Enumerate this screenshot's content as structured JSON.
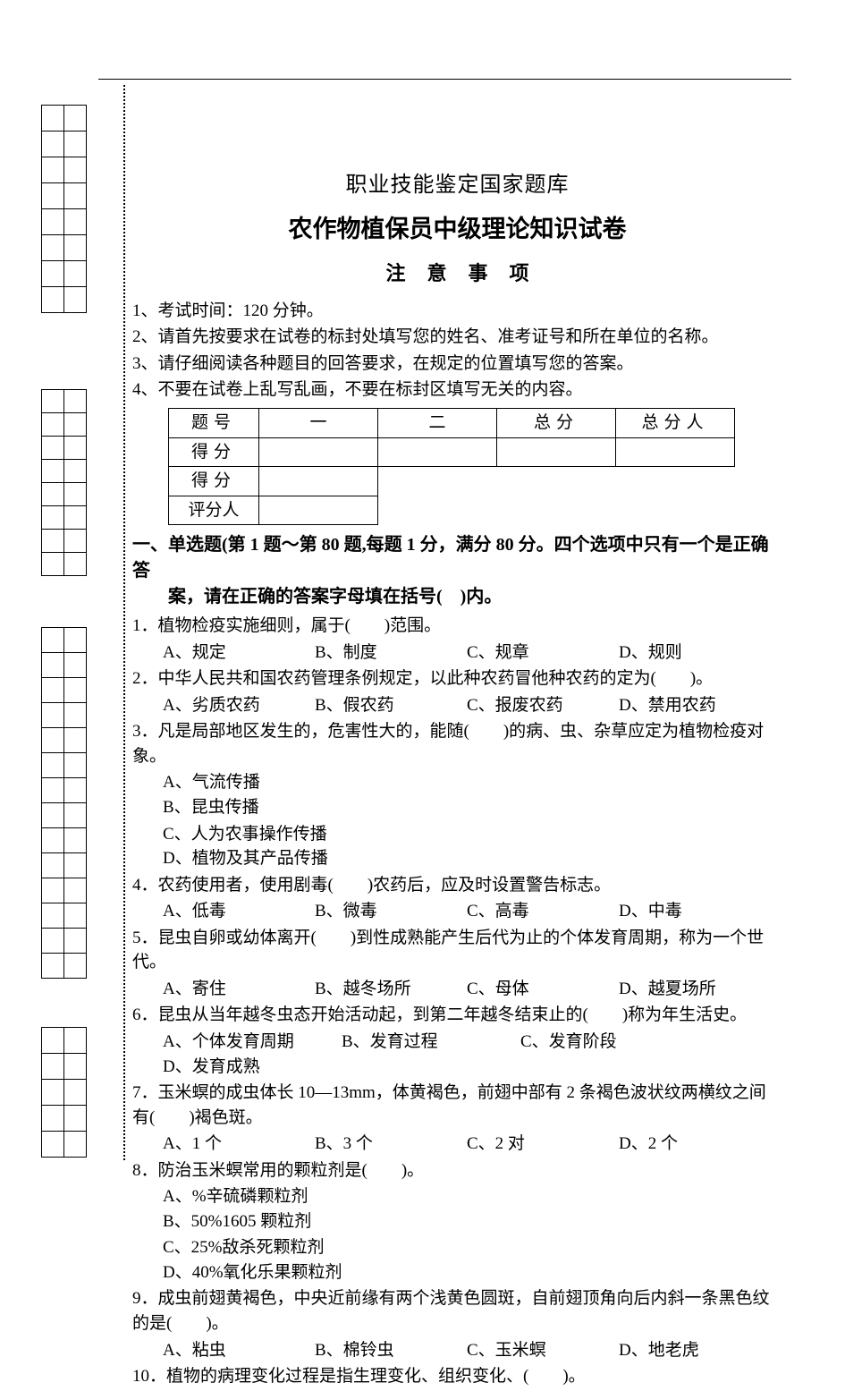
{
  "header": {
    "title1": "职业技能鉴定国家题库",
    "title2": "农作物植保员中级理论知识试卷",
    "title3": "注意事项"
  },
  "notes": [
    "1、考试时间：120 分钟。",
    "2、请首先按要求在试卷的标封处填写您的姓名、准考证号和所在单位的名称。",
    "3、请仔细阅读各种题目的回答要求，在规定的位置填写您的答案。",
    "4、不要在试卷上乱写乱画，不要在标封区填写无关的内容。"
  ],
  "score_table": {
    "row1_label": "题号",
    "row1_cells": [
      "一",
      "二",
      "总分",
      "总分人"
    ],
    "row2_label": "得分",
    "row3_label": "得分",
    "row4_label": "评分人"
  },
  "section1": {
    "line1": "一、单选题(第 1 题～第 80 题,每题 1 分，满分 80 分。四个选项中只有一个是正确答",
    "line2": "案，请在正确的答案字母填在括号(　)内。"
  },
  "questions": [
    {
      "stem": "1．植物检疫实施细则，属于(　　)范围。",
      "opts": [
        [
          "A、规定",
          "B、制度",
          "C、规章",
          "D、规则"
        ]
      ],
      "cls": "w120"
    },
    {
      "stem": "2．中华人民共和国农药管理条例规定，以此种农药冒他种农药的定为(　　)。",
      "opts": [
        [
          "A、劣质农药",
          "B、假农药",
          "C、报废农药",
          "D、禁用农药"
        ]
      ],
      "cls": "w120"
    },
    {
      "stem": "3．凡是局部地区发生的，危害性大的，能随(　　)的病、虫、杂草应定为植物检疫对象。",
      "opts": [
        [
          "A、气流传播",
          "B、昆虫传播"
        ],
        [
          "C、人为农事操作传播",
          "D、植物及其产品传播"
        ]
      ],
      "cls": "w300"
    },
    {
      "stem": "4．农药使用者，使用剧毒(　　)农药后，应及时设置警告标志。",
      "opts": [
        [
          "A、低毒",
          "B、微毒",
          "C、高毒",
          "D、中毒"
        ]
      ],
      "cls": "w120"
    },
    {
      "stem": "5．昆虫自卵或幼体离开(　　)到性成熟能产生后代为止的个体发育周期，称为一个世代。",
      "opts": [
        [
          "A、寄住",
          "B、越冬场所",
          "C、母体",
          "D、越夏场所"
        ]
      ],
      "cls": "w120"
    },
    {
      "stem": "6．昆虫从当年越冬虫态开始活动起，到第二年越冬结束止的(　　)称为年生活史。",
      "opts": [
        [
          "A、个体发育周期",
          "B、发育过程",
          "C、发育阶段",
          "D、发育成熟"
        ]
      ],
      "cls": "w160"
    },
    {
      "stem": "7．玉米螟的成虫体长 10—13mm，体黄褐色，前翅中部有 2 条褐色波状纹两横纹之间有(　　)褐色斑。",
      "opts": [
        [
          "A、1 个",
          "B、3 个",
          "C、2 对",
          "D、2 个"
        ]
      ],
      "cls": "w120"
    },
    {
      "stem": "8．防治玉米螟常用的颗粒剂是(　　)。",
      "opts": [
        [
          "A、%辛硫磷颗粒剂",
          "B、50%1605 颗粒剂"
        ],
        [
          "C、25%敌杀死颗粒剂",
          "D、40%氧化乐果颗粒剂"
        ]
      ],
      "cls": "w300"
    },
    {
      "stem": "9．成虫前翅黄褐色，中央近前缘有两个浅黄色圆斑，自前翅顶角向后内斜一条黑色纹的是(　　)。",
      "opts": [
        [
          "A、粘虫",
          "B、棉铃虫",
          "C、玉米螟",
          "D、地老虎"
        ]
      ],
      "cls": "w120"
    },
    {
      "stem": "10．植物的病理变化过程是指生理变化、组织变化、(　　)。",
      "opts": [],
      "cls": ""
    }
  ]
}
